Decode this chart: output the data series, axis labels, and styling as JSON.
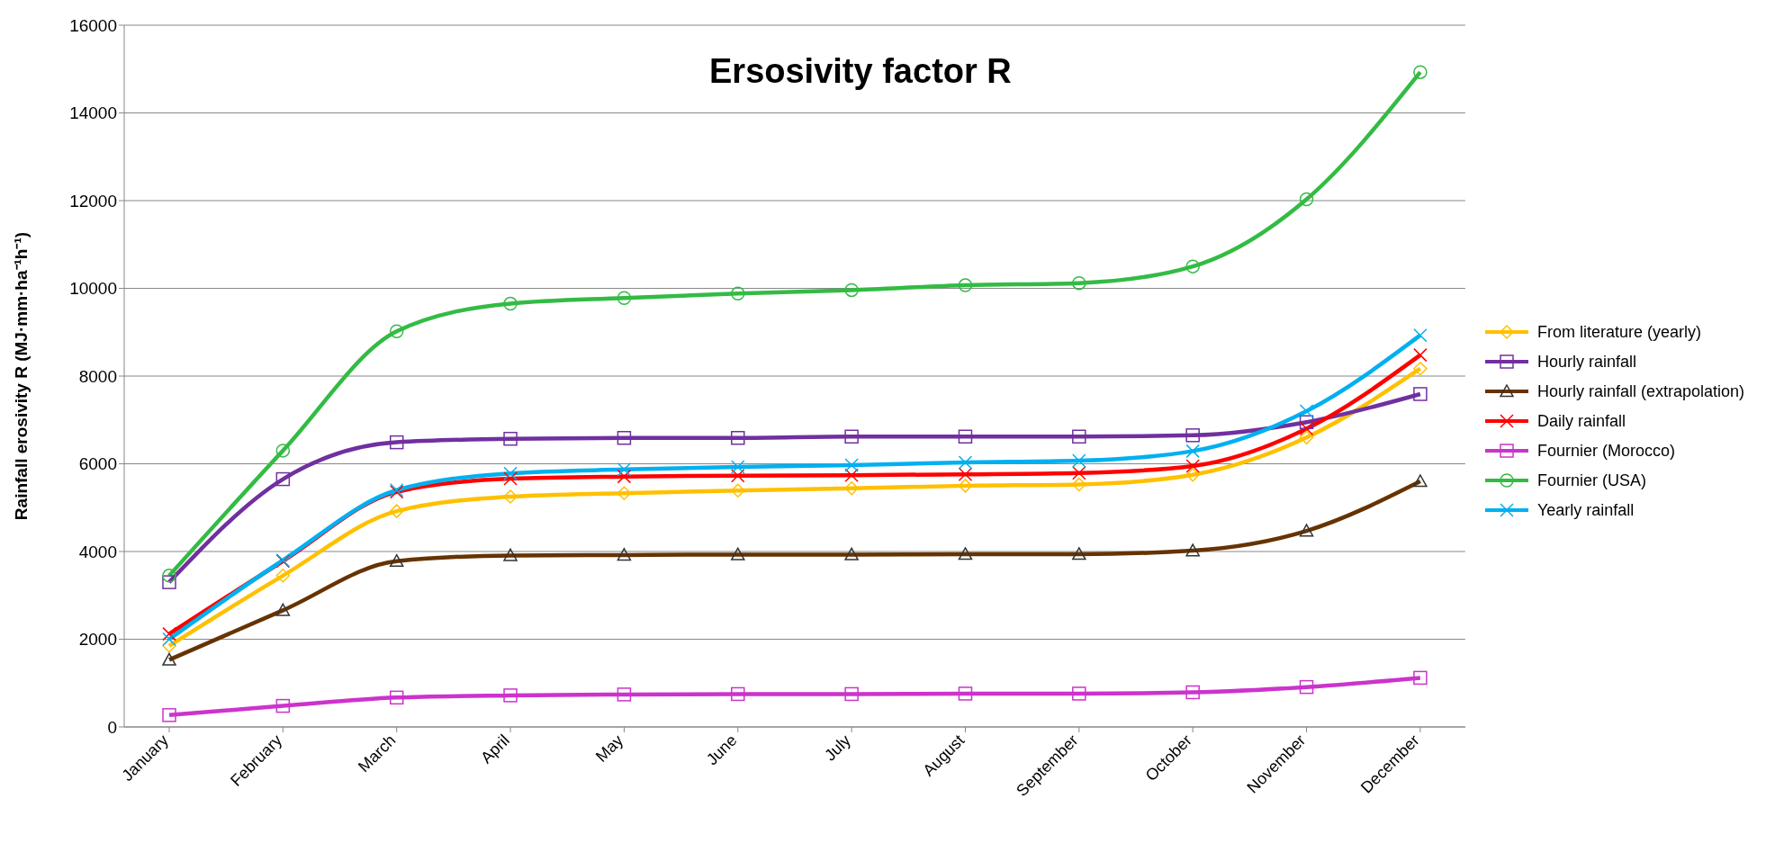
{
  "chart_data": {
    "type": "line",
    "title": "Ersosivity factor R",
    "ylabel": "Rainfall erosivity R (MJ·mm·ha⁻¹h⁻¹)",
    "categories": [
      "January",
      "February",
      "March",
      "April",
      "May",
      "June",
      "July",
      "August",
      "September",
      "October",
      "November",
      "December"
    ],
    "series": [
      {
        "name": "From literature (yearly)",
        "color": "#ffc000",
        "marker": "diamond",
        "values": [
          1850,
          3450,
          4920,
          5250,
          5330,
          5390,
          5440,
          5500,
          5530,
          5750,
          6600,
          8170
        ]
      },
      {
        "name": "Hourly rainfall",
        "color": "#7030a0",
        "marker": "square",
        "values": [
          3300,
          5650,
          6490,
          6570,
          6590,
          6590,
          6620,
          6620,
          6620,
          6650,
          6950,
          7590
        ]
      },
      {
        "name": "Hourly rainfall (extrapolation)",
        "color": "#663300",
        "marker": "triangle",
        "values": [
          1530,
          2660,
          3780,
          3910,
          3920,
          3930,
          3930,
          3940,
          3940,
          4020,
          4470,
          5600
        ]
      },
      {
        "name": "Daily rainfall",
        "color": "#ff0000",
        "marker": "cross",
        "values": [
          2120,
          3780,
          5360,
          5660,
          5710,
          5730,
          5740,
          5760,
          5790,
          5950,
          6800,
          8480
        ]
      },
      {
        "name": "Fournier (Morocco)",
        "color": "#cc33cc",
        "marker": "square",
        "values": [
          270,
          480,
          670,
          720,
          740,
          750,
          750,
          760,
          760,
          790,
          910,
          1120
        ]
      },
      {
        "name": "Fournier (USA)",
        "color": "#33bb44",
        "marker": "circle",
        "values": [
          3450,
          6300,
          9020,
          9650,
          9780,
          9880,
          9960,
          10070,
          10120,
          10500,
          12030,
          14930
        ]
      },
      {
        "name": "Yearly rainfall",
        "color": "#00b0f0",
        "marker": "cross",
        "values": [
          2000,
          3800,
          5400,
          5780,
          5870,
          5930,
          5970,
          6030,
          6070,
          6290,
          7200,
          8930
        ]
      }
    ],
    "ylim": [
      0,
      16000
    ],
    "yticks": [
      0,
      2000,
      4000,
      6000,
      8000,
      10000,
      12000,
      14000,
      16000
    ],
    "grid": "y",
    "legend": "right",
    "line_style": "solid"
  }
}
